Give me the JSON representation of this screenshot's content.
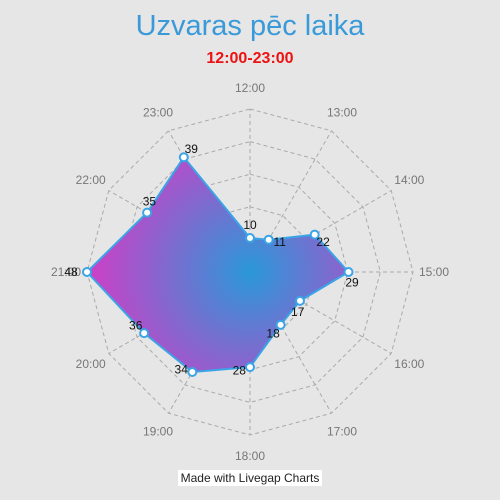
{
  "chart_data": {
    "type": "radar",
    "title": "Uzvaras pēc laika",
    "subtitle": "12:00-23:00",
    "categories": [
      "12:00",
      "13:00",
      "14:00",
      "15:00",
      "16:00",
      "17:00",
      "18:00",
      "19:00",
      "20:00",
      "21:00",
      "22:00",
      "23:00"
    ],
    "values": [
      10,
      11,
      22,
      29,
      17,
      18,
      28,
      34,
      36,
      48,
      35,
      39
    ],
    "rlim": [
      0,
      48
    ],
    "grid": true,
    "grid_rings": 5,
    "data_labels": true,
    "colors": {
      "fill_center": "#2a98d8",
      "fill_edge": "#d23dc6",
      "line": "#3aa4e6",
      "grid": "#aaaaaa",
      "axis_label": "#777777"
    }
  },
  "footer": {
    "credit": "Made with Livegap Charts"
  }
}
